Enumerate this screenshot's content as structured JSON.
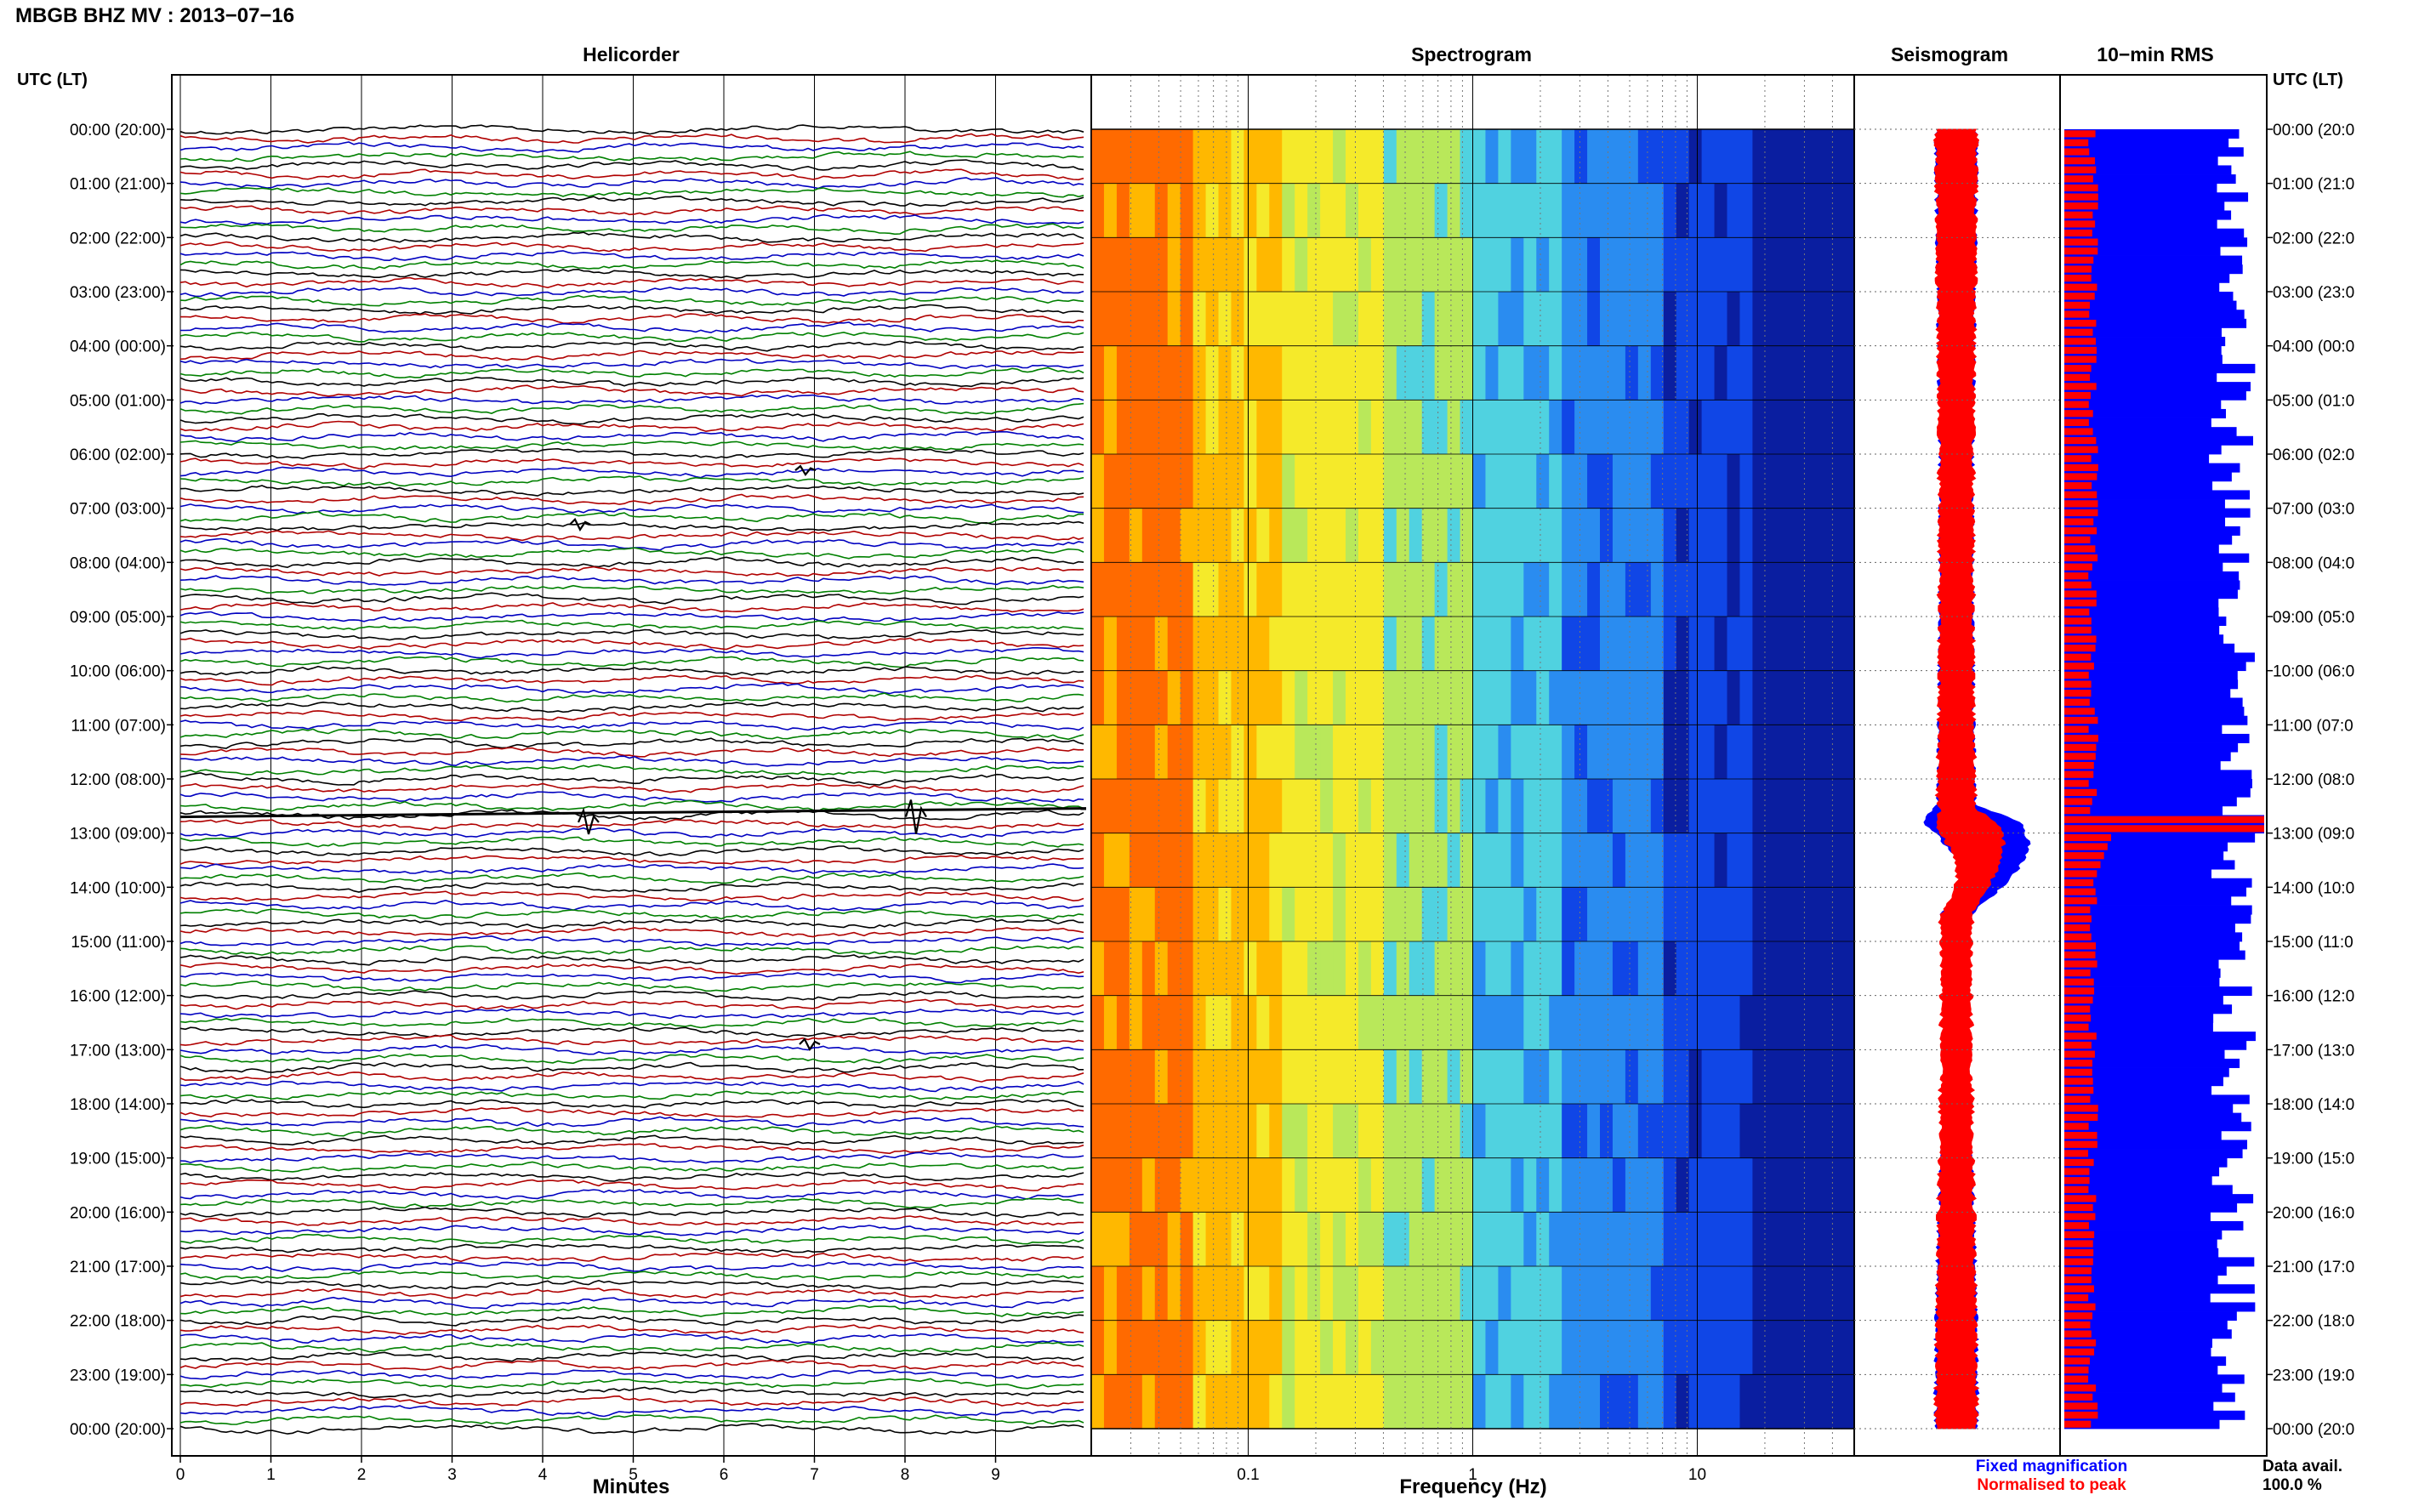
{
  "title": "MBGB BHZ MV : 2013−07−16",
  "colors": {
    "trace_cycle": [
      "#000000",
      "#b00000",
      "#0000c0",
      "#008000"
    ],
    "fixed_mag": "#0000ff",
    "normalised": "#ff0000",
    "frame": "#000000"
  },
  "chart_data": [
    {
      "type": "line",
      "title": "Helicorder",
      "xlabel": "Minutes",
      "ylabel": "UTC (LT)",
      "xlim": [
        0,
        10
      ],
      "x_ticks": [
        "0",
        "1",
        "2",
        "3",
        "4",
        "5",
        "6",
        "7",
        "8",
        "9"
      ],
      "y_labels_left": [
        "00:00 (20:00)",
        "01:00 (21:00)",
        "02:00 (22:00)",
        "03:00 (23:00)",
        "04:00 (00:00)",
        "05:00 (01:00)",
        "06:00 (02:00)",
        "07:00 (03:00)",
        "08:00 (04:00)",
        "09:00 (05:00)",
        "10:00 (06:00)",
        "11:00 (07:00)",
        "12:00 (08:00)",
        "13:00 (09:00)",
        "14:00 (10:00)",
        "15:00 (11:00)",
        "16:00 (12:00)",
        "17:00 (13:00)",
        "18:00 (14:00)",
        "19:00 (15:00)",
        "20:00 (16:00)",
        "21:00 (17:00)",
        "22:00 (18:00)",
        "23:00 (19:00)",
        "00:00 (20:00)"
      ],
      "traces_per_hour": 6,
      "trace_count": 144,
      "grid": true
    },
    {
      "type": "heatmap",
      "title": "Spectrogram",
      "xlabel": "Frequency (Hz)",
      "x_scale": "log",
      "x_ticks": [
        "0.1",
        "1",
        "10"
      ],
      "xlim": [
        0.02,
        50
      ],
      "colormap": [
        "#ff6a00",
        "#ffb800",
        "#f5ea2a",
        "#b9e85a",
        "#50d2e0",
        "#2a8cf0",
        "#1046e6",
        "#0a1ea0"
      ]
    },
    {
      "type": "line",
      "title": "Seismogram",
      "legend": [
        "Fixed magnification",
        "Normalised to peak"
      ],
      "series": [
        {
          "name": "Fixed magnification",
          "hours": [
            0,
            2,
            4,
            6,
            8,
            10,
            12,
            12.5,
            12.8,
            13.2,
            13.8,
            14.4,
            15,
            16,
            17,
            18,
            19,
            20,
            21,
            22,
            23,
            24
          ],
          "values": [
            0.3,
            0.26,
            0.22,
            0.18,
            0.18,
            0.2,
            0.22,
            0.3,
            1.0,
            0.85,
            0.4,
            0.15,
            0.05,
            0.02,
            0.04,
            0.1,
            0.15,
            0.2,
            0.25,
            0.28,
            0.3,
            0.32
          ]
        },
        {
          "name": "Normalised to peak",
          "hours": [
            0,
            2,
            4,
            6,
            8,
            10,
            12,
            12.6,
            12.9,
            13.3,
            13.9,
            14.5,
            15,
            16,
            17,
            18,
            19,
            20,
            21,
            22,
            23,
            24
          ],
          "values": [
            0.3,
            0.27,
            0.24,
            0.21,
            0.21,
            0.22,
            0.24,
            0.28,
            0.62,
            0.45,
            0.2,
            0.18,
            0.16,
            0.16,
            0.17,
            0.19,
            0.21,
            0.23,
            0.25,
            0.27,
            0.29,
            0.3
          ]
        }
      ]
    },
    {
      "type": "bar",
      "title": "10−min RMS",
      "y_labels_right": [
        "00:00 (20:0",
        "01:00 (21:0",
        "02:00 (22:0",
        "03:00 (23:0",
        "04:00 (00:0",
        "05:00 (01:0",
        "06:00 (02:0",
        "07:00 (03:0",
        "08:00 (04:0",
        "09:00 (05:0",
        "10:00 (06:0",
        "11:00 (07:0",
        "12:00 (08:0",
        "13:00 (09:0",
        "14:00 (10:0",
        "15:00 (11:0",
        "16:00 (12:0",
        "17:00 (13:0",
        "18:00 (14:0",
        "19:00 (15:0",
        "20:00 (16:0",
        "21:00 (17:0",
        "22:00 (18:0",
        "23:00 (19:0",
        "00:00 (20:0"
      ],
      "right_title": "UTC (LT)",
      "bars": 144,
      "peak_hour": 12.8,
      "data_avail_label": "Data avail.",
      "data_avail_value": "100.0 %"
    }
  ]
}
